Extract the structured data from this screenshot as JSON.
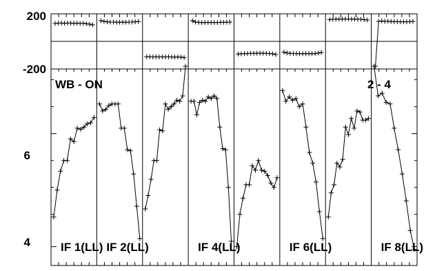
{
  "chart_data": {
    "type": "line",
    "title": "WB - ON",
    "baseline": "2 - 4",
    "phase_panel": {
      "ylim": [
        -200,
        200
      ],
      "tick_labels": [
        "200",
        "-200"
      ]
    },
    "amp_panel": {
      "ylim": [
        3.55,
        7.2
      ],
      "tick_labels": [
        "6",
        "4"
      ]
    },
    "panels": [
      {
        "label": "IF 1(LL)",
        "amp": [
          4.45,
          4.95,
          5.3,
          5.5,
          5.5,
          5.9,
          5.85,
          6.1,
          6.08,
          6.12,
          6.18,
          6.2,
          6.3
        ],
        "phase": [
          130,
          132,
          133,
          131,
          133,
          132,
          131,
          132,
          130,
          131,
          128,
          125,
          120
        ]
      },
      {
        "label": "IF 2(LL)",
        "amp": [
          6.55,
          6.42,
          6.45,
          6.52,
          6.55,
          6.55,
          6.55,
          6.1,
          6.1,
          5.7,
          5.68,
          5.25,
          4.65,
          4.05
        ],
        "phase": [
          150,
          145,
          142,
          140,
          140,
          139,
          139,
          139,
          139,
          140,
          140,
          142,
          144
        ]
      },
      {
        "label": "",
        "amp": [
          4.6,
          4.85,
          5.15,
          5.5,
          5.5,
          6.07,
          6.05,
          6.55,
          6.45,
          6.5,
          6.55,
          6.62,
          6.6,
          6.7,
          7.25
        ],
        "phase": [
          -112,
          -112,
          -113,
          -112,
          -113,
          -112,
          -113,
          -112,
          -113,
          -114,
          -113,
          -114,
          -118
        ]
      },
      {
        "label": "IF 4(LL)",
        "amp": [
          6.6,
          6.6,
          6.35,
          6.58,
          6.62,
          6.6,
          6.68,
          6.65,
          6.7,
          6.65,
          6.12,
          5.72,
          5.7,
          5.0,
          4.0
        ],
        "phase": [
          150,
          140,
          138,
          136,
          137,
          137,
          137,
          137,
          137,
          138,
          138,
          139,
          140
        ]
      },
      {
        "label": "",
        "amp": [
          3.9,
          4.5,
          4.8,
          5.05,
          5.05,
          5.4,
          5.32,
          5.5,
          5.32,
          5.3,
          5.22,
          5.08,
          5.0,
          5.18
        ],
        "phase": [
          -92,
          -90,
          -89,
          -88,
          -87,
          -87,
          -86,
          -86,
          -86,
          -87,
          -88,
          -90,
          -95
        ]
      },
      {
        "label": "IF 6(LL)",
        "amp": [
          6.8,
          6.6,
          6.68,
          6.62,
          6.65,
          6.5,
          6.55,
          6.12,
          5.65,
          5.45,
          5.1,
          4.55,
          4.05
        ],
        "phase": [
          -78,
          -84,
          -87,
          -88,
          -88,
          -89,
          -89,
          -89,
          -89,
          -89,
          -88,
          -85,
          -80
        ]
      },
      {
        "label": "",
        "amp": [
          4.45,
          4.9,
          5.05,
          5.45,
          5.38,
          5.52,
          6.12,
          5.98,
          6.28,
          6.1,
          6.42,
          6.4,
          6.25,
          6.25,
          6.28
        ],
        "phase": [
          158,
          160,
          161,
          161,
          162,
          162,
          162,
          162,
          161,
          161,
          160,
          158,
          155
        ]
      },
      {
        "label": "IF 8(LL)",
        "amp": [
          7.25,
          6.7,
          6.75,
          6.58,
          6.55,
          6.1,
          5.7,
          5.25,
          4.75,
          4.2,
          3.85
        ],
        "phase": [
          -180,
          145,
          148,
          145,
          146,
          144,
          143,
          143,
          142,
          142,
          142,
          143,
          145
        ]
      }
    ]
  }
}
